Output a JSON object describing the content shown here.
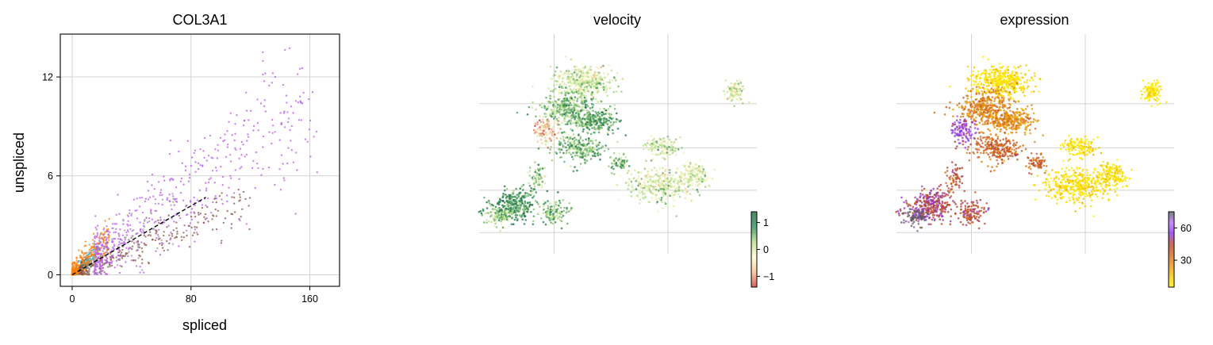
{
  "panels": {
    "scatter": {
      "title": "COL3A1",
      "xlabel": "spliced",
      "ylabel": "unspliced"
    },
    "velocity": {
      "title": "velocity"
    },
    "expression": {
      "title": "expression"
    }
  },
  "chart_data": [
    {
      "type": "scatter",
      "title": "COL3A1",
      "xlabel": "spliced",
      "ylabel": "unspliced",
      "xlim": [
        -8,
        180
      ],
      "ylim": [
        -0.7,
        14.6
      ],
      "xticks": [
        0,
        80,
        160
      ],
      "yticks": [
        0,
        6,
        12
      ],
      "grid": true,
      "series_colors": [
        "#1f77b4",
        "#17becf",
        "#ff7f0e",
        "#8c564b",
        "#b85cf0",
        "#9e9e9e",
        "#e377c2",
        "#bcbd22",
        "#2ca02c"
      ],
      "clusters": [
        {
          "color": "#1f77b4",
          "x_range": [
            0,
            12
          ],
          "slope": 0.07,
          "spread": 0.4,
          "weight": 0.1
        },
        {
          "color": "#17becf",
          "x_range": [
            0,
            18
          ],
          "slope": 0.08,
          "spread": 0.5,
          "weight": 0.08
        },
        {
          "color": "#ff7f0e",
          "x_range": [
            0,
            25
          ],
          "slope": 0.09,
          "spread": 0.9,
          "weight": 0.22
        },
        {
          "color": "#8c564b",
          "x_range": [
            5,
            120
          ],
          "slope": 0.038,
          "spread": 0.6,
          "weight": 0.18
        },
        {
          "color": "#b85cf0",
          "x_range": [
            15,
            165
          ],
          "slope": 0.065,
          "spread": 1.4,
          "weight": 0.36
        },
        {
          "color": "#9e9e9e",
          "x_range": [
            10,
            70
          ],
          "slope": 0.06,
          "spread": 1.2,
          "weight": 0.06
        }
      ],
      "steady_state_line": {
        "x": [
          0,
          90
        ],
        "y": [
          0,
          4.7
        ]
      }
    },
    {
      "type": "scatter",
      "title": "velocity",
      "embedding": "umap",
      "grid": true,
      "colormap": [
        "#c23b3b",
        "#f4c28c",
        "#fffbd2",
        "#b6dd86",
        "#2e8b57",
        "#1a6b3a"
      ],
      "colorbar": {
        "ticks": [
          -1,
          0,
          1
        ],
        "tick_labels": [
          "−1",
          "0",
          "1"
        ],
        "range": [
          -1.4,
          1.4
        ]
      }
    },
    {
      "type": "scatter",
      "title": "expression",
      "embedding": "umap",
      "grid": true,
      "colormap": [
        "#ffef00",
        "#f5c400",
        "#e69210",
        "#d0621c",
        "#b5432e",
        "#8a32e0",
        "#b96bff",
        "#5a5a5a"
      ],
      "colorbar": {
        "ticks": [
          30,
          60
        ],
        "tick_labels": [
          "30",
          "60"
        ],
        "range": [
          5,
          75
        ]
      }
    }
  ]
}
